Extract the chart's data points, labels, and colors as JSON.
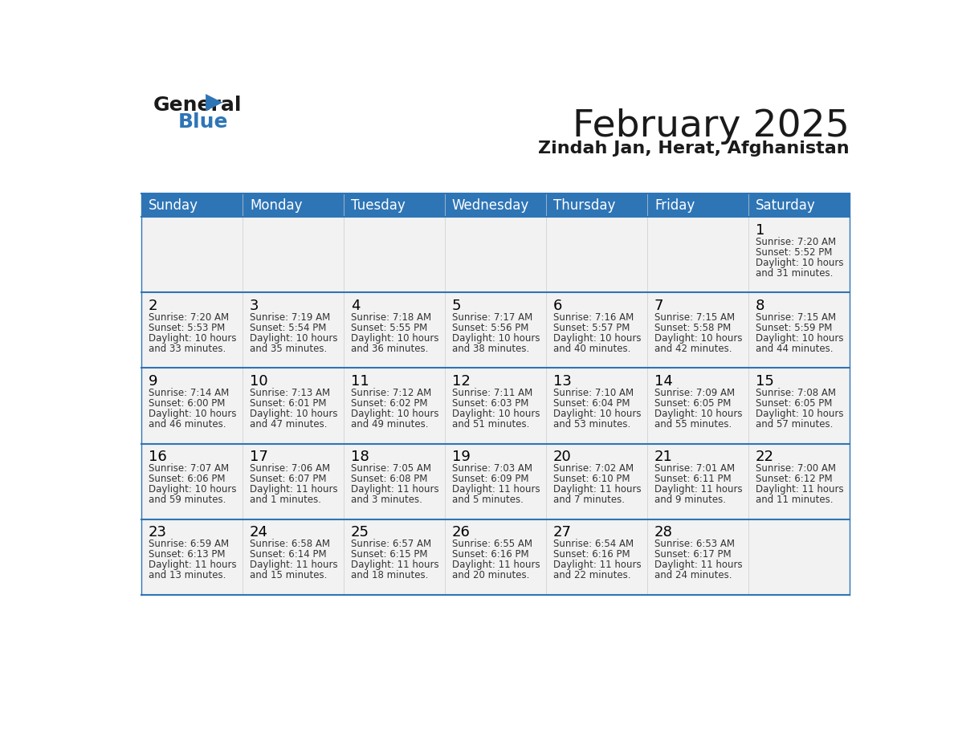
{
  "title": "February 2025",
  "subtitle": "Zindah Jan, Herat, Afghanistan",
  "header_color": "#2E75B6",
  "header_text_color": "#FFFFFF",
  "days_of_week": [
    "Sunday",
    "Monday",
    "Tuesday",
    "Wednesday",
    "Thursday",
    "Friday",
    "Saturday"
  ],
  "calendar_data": [
    [
      null,
      null,
      null,
      null,
      null,
      null,
      {
        "day": 1,
        "sunrise": "7:20 AM",
        "sunset": "5:52 PM",
        "daylight_hours": 10,
        "daylight_minutes": 31
      }
    ],
    [
      {
        "day": 2,
        "sunrise": "7:20 AM",
        "sunset": "5:53 PM",
        "daylight_hours": 10,
        "daylight_minutes": 33
      },
      {
        "day": 3,
        "sunrise": "7:19 AM",
        "sunset": "5:54 PM",
        "daylight_hours": 10,
        "daylight_minutes": 35
      },
      {
        "day": 4,
        "sunrise": "7:18 AM",
        "sunset": "5:55 PM",
        "daylight_hours": 10,
        "daylight_minutes": 36
      },
      {
        "day": 5,
        "sunrise": "7:17 AM",
        "sunset": "5:56 PM",
        "daylight_hours": 10,
        "daylight_minutes": 38
      },
      {
        "day": 6,
        "sunrise": "7:16 AM",
        "sunset": "5:57 PM",
        "daylight_hours": 10,
        "daylight_minutes": 40
      },
      {
        "day": 7,
        "sunrise": "7:15 AM",
        "sunset": "5:58 PM",
        "daylight_hours": 10,
        "daylight_minutes": 42
      },
      {
        "day": 8,
        "sunrise": "7:15 AM",
        "sunset": "5:59 PM",
        "daylight_hours": 10,
        "daylight_minutes": 44
      }
    ],
    [
      {
        "day": 9,
        "sunrise": "7:14 AM",
        "sunset": "6:00 PM",
        "daylight_hours": 10,
        "daylight_minutes": 46
      },
      {
        "day": 10,
        "sunrise": "7:13 AM",
        "sunset": "6:01 PM",
        "daylight_hours": 10,
        "daylight_minutes": 47
      },
      {
        "day": 11,
        "sunrise": "7:12 AM",
        "sunset": "6:02 PM",
        "daylight_hours": 10,
        "daylight_minutes": 49
      },
      {
        "day": 12,
        "sunrise": "7:11 AM",
        "sunset": "6:03 PM",
        "daylight_hours": 10,
        "daylight_minutes": 51
      },
      {
        "day": 13,
        "sunrise": "7:10 AM",
        "sunset": "6:04 PM",
        "daylight_hours": 10,
        "daylight_minutes": 53
      },
      {
        "day": 14,
        "sunrise": "7:09 AM",
        "sunset": "6:05 PM",
        "daylight_hours": 10,
        "daylight_minutes": 55
      },
      {
        "day": 15,
        "sunrise": "7:08 AM",
        "sunset": "6:05 PM",
        "daylight_hours": 10,
        "daylight_minutes": 57
      }
    ],
    [
      {
        "day": 16,
        "sunrise": "7:07 AM",
        "sunset": "6:06 PM",
        "daylight_hours": 10,
        "daylight_minutes": 59
      },
      {
        "day": 17,
        "sunrise": "7:06 AM",
        "sunset": "6:07 PM",
        "daylight_hours": 11,
        "daylight_minutes": 1
      },
      {
        "day": 18,
        "sunrise": "7:05 AM",
        "sunset": "6:08 PM",
        "daylight_hours": 11,
        "daylight_minutes": 3
      },
      {
        "day": 19,
        "sunrise": "7:03 AM",
        "sunset": "6:09 PM",
        "daylight_hours": 11,
        "daylight_minutes": 5
      },
      {
        "day": 20,
        "sunrise": "7:02 AM",
        "sunset": "6:10 PM",
        "daylight_hours": 11,
        "daylight_minutes": 7
      },
      {
        "day": 21,
        "sunrise": "7:01 AM",
        "sunset": "6:11 PM",
        "daylight_hours": 11,
        "daylight_minutes": 9
      },
      {
        "day": 22,
        "sunrise": "7:00 AM",
        "sunset": "6:12 PM",
        "daylight_hours": 11,
        "daylight_minutes": 11
      }
    ],
    [
      {
        "day": 23,
        "sunrise": "6:59 AM",
        "sunset": "6:13 PM",
        "daylight_hours": 11,
        "daylight_minutes": 13
      },
      {
        "day": 24,
        "sunrise": "6:58 AM",
        "sunset": "6:14 PM",
        "daylight_hours": 11,
        "daylight_minutes": 15
      },
      {
        "day": 25,
        "sunrise": "6:57 AM",
        "sunset": "6:15 PM",
        "daylight_hours": 11,
        "daylight_minutes": 18
      },
      {
        "day": 26,
        "sunrise": "6:55 AM",
        "sunset": "6:16 PM",
        "daylight_hours": 11,
        "daylight_minutes": 20
      },
      {
        "day": 27,
        "sunrise": "6:54 AM",
        "sunset": "6:16 PM",
        "daylight_hours": 11,
        "daylight_minutes": 22
      },
      {
        "day": 28,
        "sunrise": "6:53 AM",
        "sunset": "6:17 PM",
        "daylight_hours": 11,
        "daylight_minutes": 24
      },
      null
    ]
  ],
  "cell_bg_color": "#F2F2F2",
  "border_color": "#2E75B6",
  "day_number_color": "#000000",
  "info_text_color": "#333333",
  "title_fontsize": 34,
  "subtitle_fontsize": 16,
  "header_fontsize": 12,
  "day_num_fontsize": 13,
  "info_fontsize": 8.5
}
